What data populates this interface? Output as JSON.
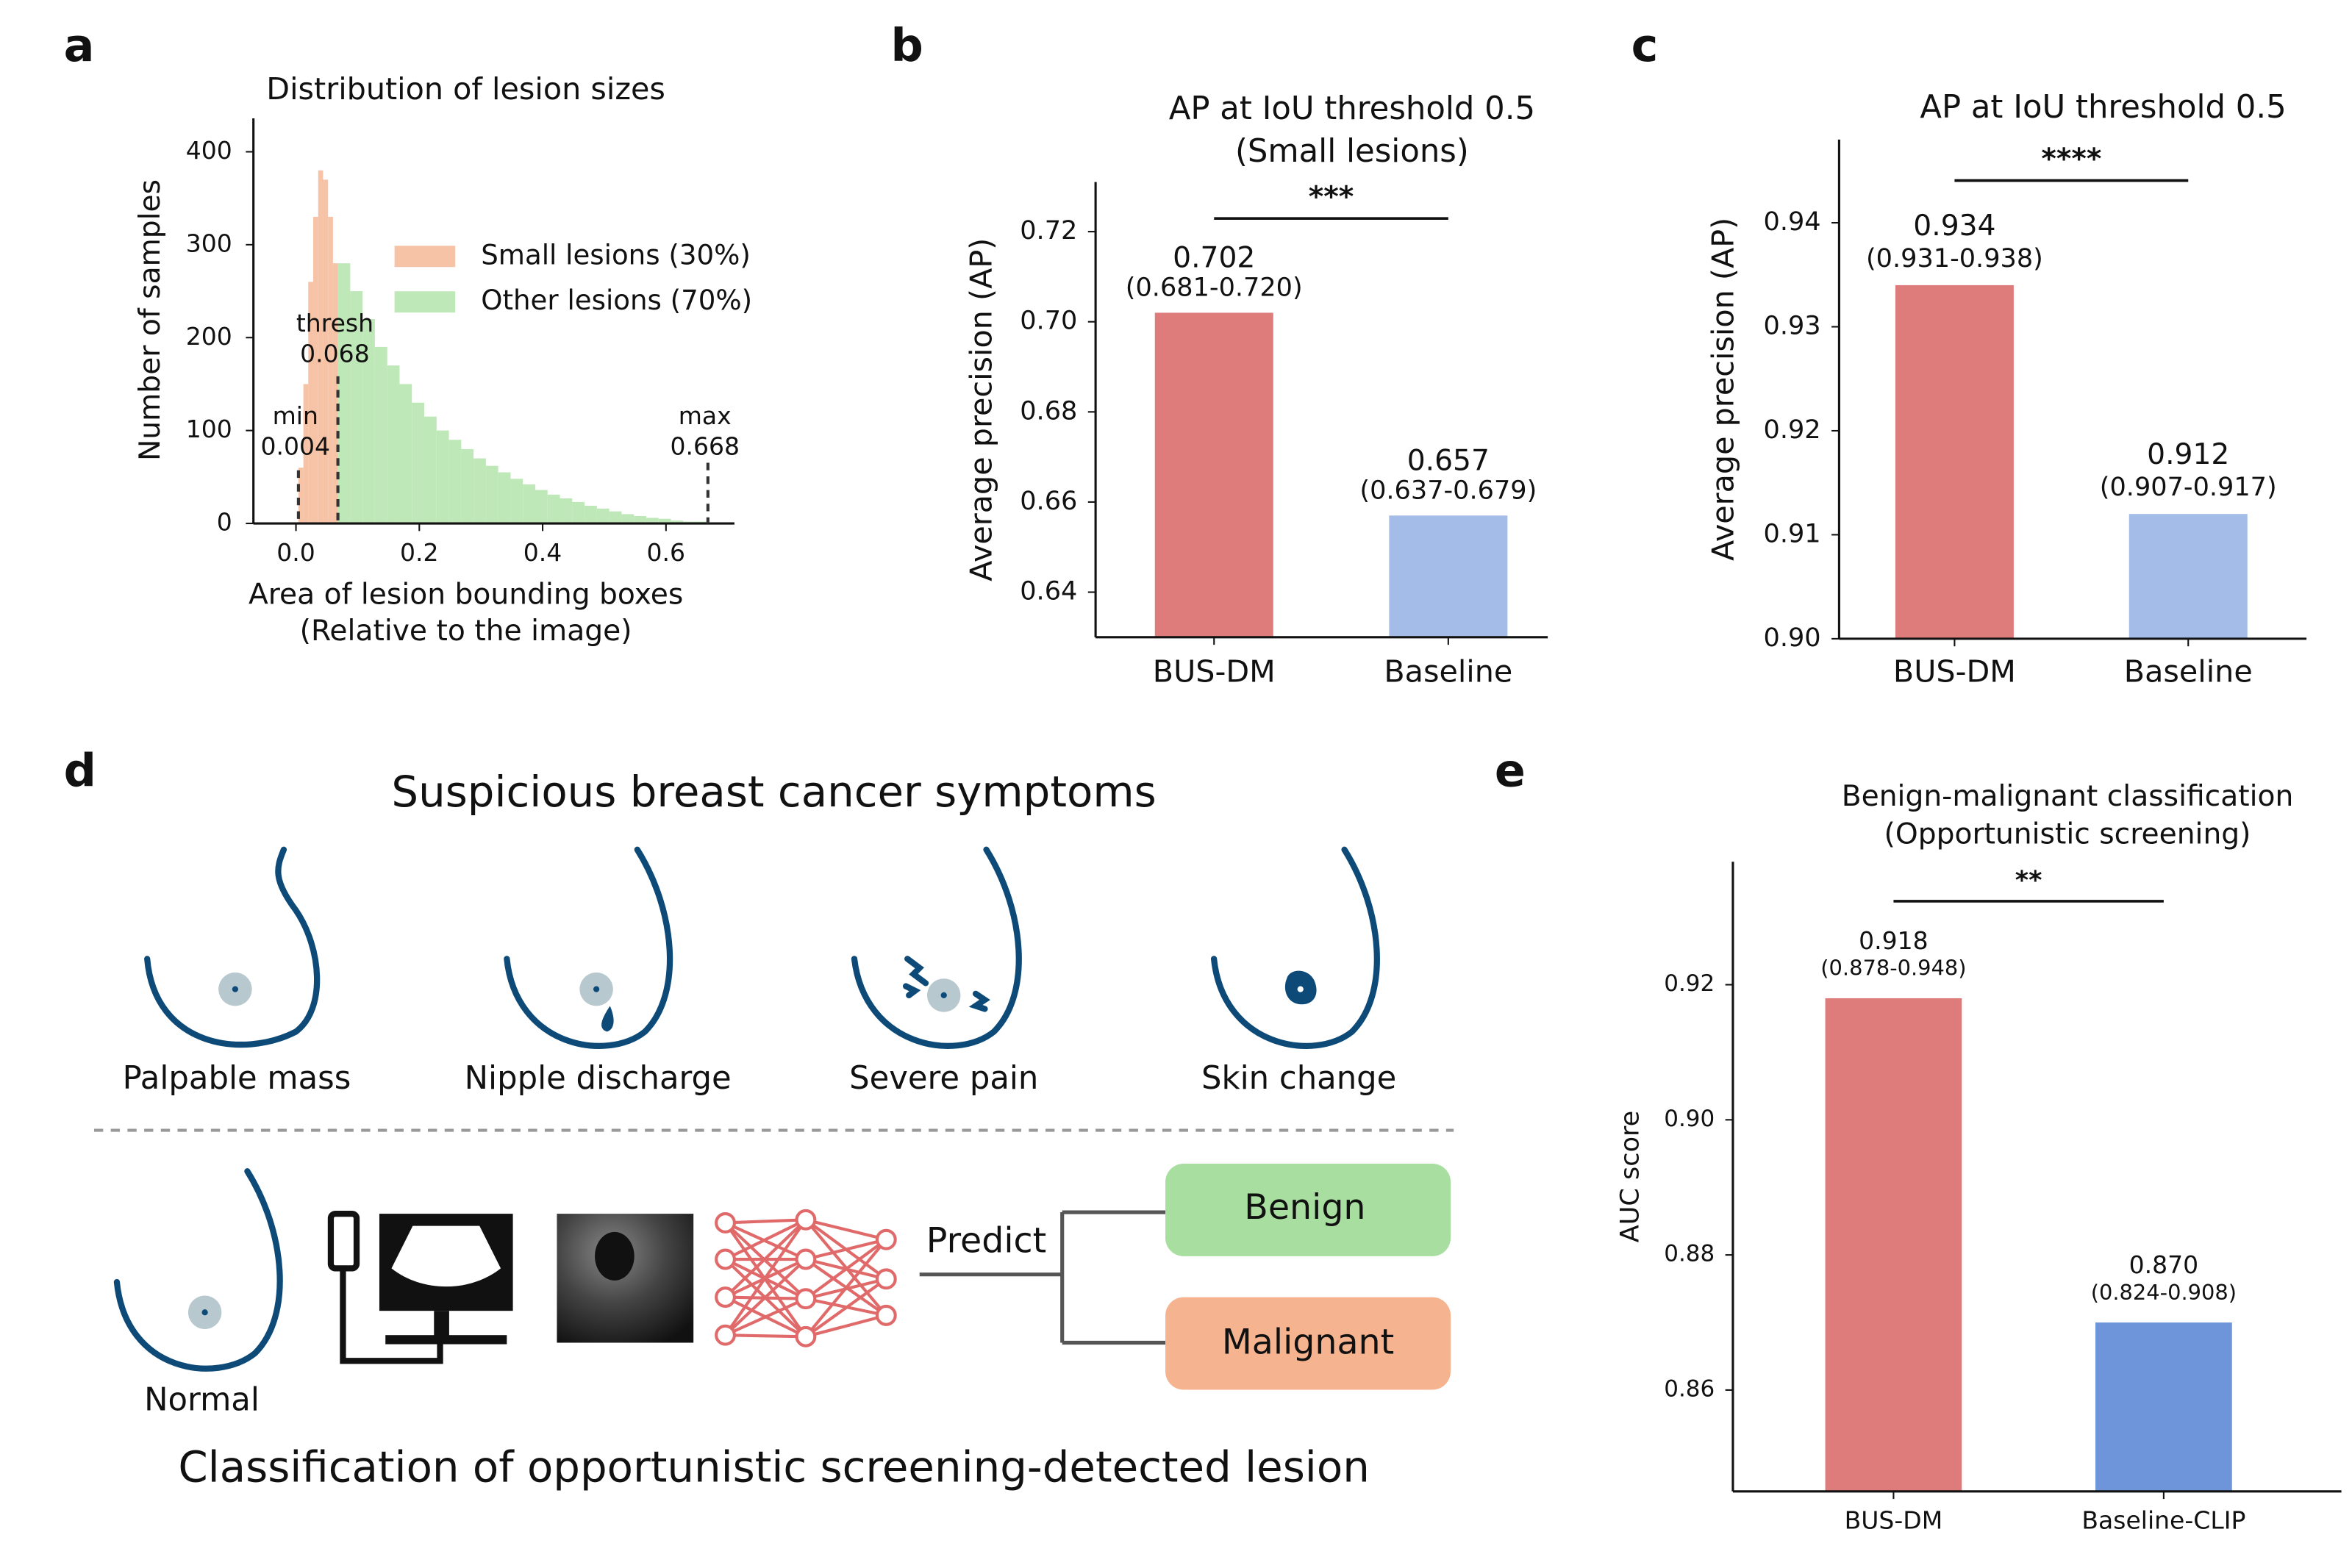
{
  "panel_labels": [
    "a",
    "b",
    "c",
    "d",
    "e"
  ],
  "chart_data": [
    {
      "type": "histogram",
      "title": "Distribution of lesion sizes",
      "xlabel": [
        "Area of lesion bounding boxes",
        "(Relative to the image)"
      ],
      "ylabel": "Number of samples",
      "xlim": [
        -0.069,
        0.711
      ],
      "ylim": [
        0,
        436
      ],
      "xticks": [
        {
          "value": 0,
          "label": "0.0"
        },
        0.2,
        0.4,
        0.6
      ],
      "yticks": [
        0,
        100,
        200,
        300,
        400
      ],
      "series": [
        {
          "name": "Small lesions (30%)",
          "color": "#f6c3a6",
          "bins": [
            0.004,
            0.012,
            0.02,
            0.028,
            0.036,
            0.044,
            0.052,
            0.06,
            0.068
          ],
          "counts": [
            60,
            150,
            260,
            330,
            380,
            370,
            330,
            280
          ]
        },
        {
          "name": "Other lesions (70%)",
          "color": "#bfe8b8",
          "bins": [
            0.068,
            0.088,
            0.108,
            0.128,
            0.148,
            0.168,
            0.188,
            0.208,
            0.228,
            0.248,
            0.268,
            0.288,
            0.308,
            0.328,
            0.348,
            0.368,
            0.388,
            0.408,
            0.428,
            0.448,
            0.468,
            0.488,
            0.508,
            0.528,
            0.548,
            0.568,
            0.588,
            0.608,
            0.628,
            0.648,
            0.668
          ],
          "counts": [
            280,
            250,
            220,
            190,
            170,
            150,
            130,
            115,
            100,
            90,
            80,
            70,
            62,
            55,
            48,
            42,
            36,
            31,
            27,
            23,
            19,
            16,
            13,
            10,
            8,
            6,
            5,
            3,
            2,
            2
          ]
        }
      ],
      "annotations": [
        {
          "label": "min",
          "value": 0.004
        },
        {
          "label": "thresh",
          "value": 0.068
        },
        {
          "label": "max",
          "value": 0.668
        }
      ]
    },
    {
      "type": "bar",
      "title": [
        "AP at IoU threshold 0.5",
        "(Small lesions)"
      ],
      "ylabel": "Average precision (AP)",
      "categories": [
        "BUS-DM",
        "Baseline"
      ],
      "values": [
        0.702,
        0.657
      ],
      "ci_labels": [
        "(0.681-0.720)",
        "(0.637-0.679)"
      ],
      "colors": [
        "#de7b7b",
        "#a4bde8"
      ],
      "ylim": [
        0.63,
        0.731
      ],
      "yticks": [
        0.64,
        0.66,
        0.68,
        {
          "value": 0.7,
          "label": "0.70"
        },
        0.72
      ],
      "significance": "***"
    },
    {
      "type": "bar",
      "title": [
        "AP at IoU threshold 0.5"
      ],
      "ylabel": "Average precision (AP)",
      "categories": [
        "BUS-DM",
        "Baseline"
      ],
      "values": [
        0.934,
        0.912
      ],
      "ci_labels": [
        "(0.931-0.938)",
        "(0.907-0.917)"
      ],
      "colors": [
        "#de7b7b",
        "#a4bde8"
      ],
      "ylim": [
        0.9,
        0.948
      ],
      "yticks": [
        {
          "value": 0.9,
          "label": "0.90"
        },
        0.91,
        0.92,
        0.93,
        0.94
      ],
      "significance": "****"
    },
    {
      "type": "bar",
      "title": [
        "Benign-malignant classification",
        "(Opportunistic screening)"
      ],
      "ylabel": "AUC score",
      "categories": [
        "BUS-DM",
        "Baseline-CLIP"
      ],
      "values": [
        0.918,
        0.87
      ],
      "value_labels": [
        "0.918",
        "0.870"
      ],
      "ci_labels": [
        "(0.878-0.948)",
        "(0.824-0.908)"
      ],
      "colors": [
        "#de7b7b",
        "#6e95d9"
      ],
      "ylim": [
        0.845,
        0.9382
      ],
      "yticks": [
        0.86,
        0.88,
        {
          "value": 0.9,
          "label": "0.90"
        },
        0.92
      ],
      "significance": "**"
    }
  ],
  "diagram": {
    "title": "Suspicious breast cancer symptoms",
    "symptoms": [
      "Palpable mass",
      "Nipple discharge",
      "Severe pain",
      "Skin change"
    ],
    "normal": "Normal",
    "predict": "Predict",
    "outputs": [
      "Benign",
      "Malignant"
    ],
    "caption": "Classification of opportunistic screening-detected lesion"
  }
}
